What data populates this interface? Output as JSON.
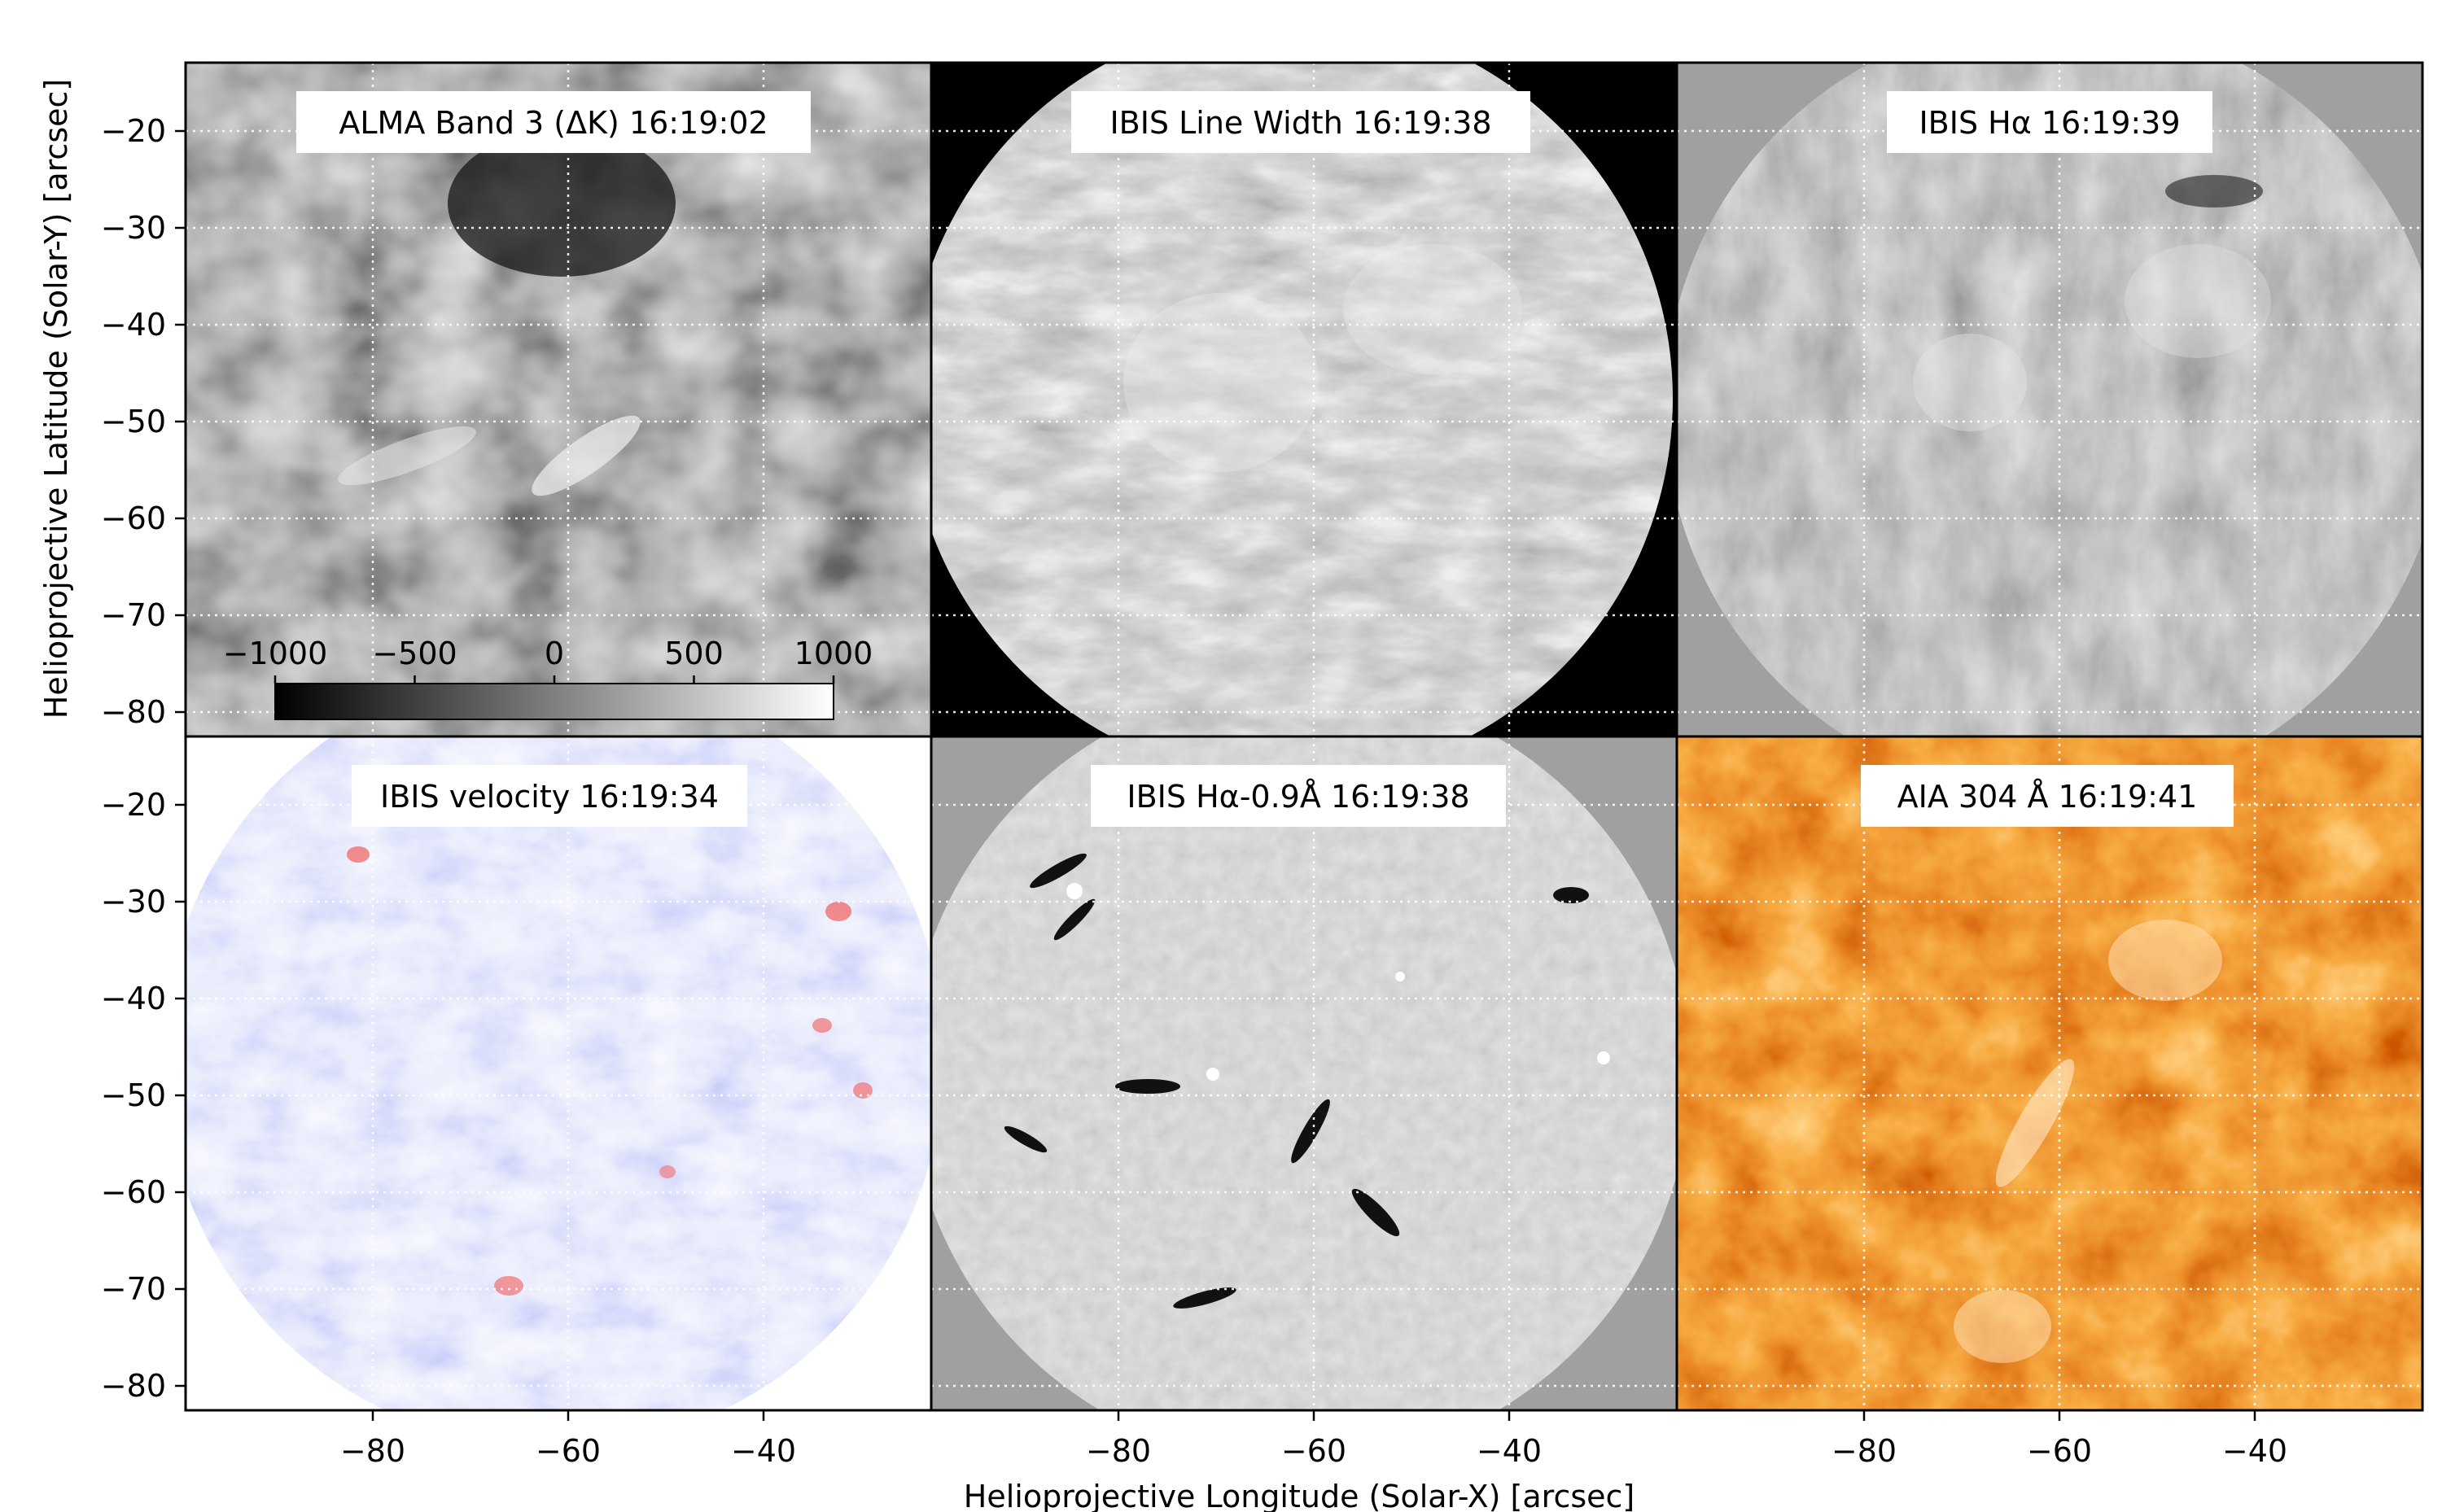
{
  "figure": {
    "xlabel": "Helioprojective Longitude (Solar-X) [arcsec]",
    "ylabel": "Helioprojective Latitude (Solar-Y) [arcsec]"
  },
  "panels": [
    {
      "id": "alma",
      "title": "ALMA Band 3 (ΔK)  16:19:02",
      "colormap": "gray",
      "colors": [
        "#1e1e1e",
        "#7a7a7a",
        "#d8d8d8"
      ]
    },
    {
      "id": "ibis-linewidth",
      "title": "IBIS Line Width  16:19:38",
      "colormap": "gray",
      "colors": [
        "#5a5a5a",
        "#9a9a9a",
        "#e4e4e4"
      ]
    },
    {
      "id": "ibis-halpha",
      "title": "IBIS Hα  16:19:39",
      "colormap": "gray",
      "colors": [
        "#3a3a3a",
        "#8a8a8a",
        "#d0d0d0"
      ]
    },
    {
      "id": "ibis-velocity",
      "title": "IBIS velocity 16:19:34",
      "colormap": "bwr",
      "colors": [
        "#7f86ee",
        "#d9dcf9",
        "#f26b6b"
      ]
    },
    {
      "id": "ibis-halpha-wing",
      "title": "IBIS Hα-0.9Å  16:19:38",
      "colormap": "gray",
      "colors": [
        "#101010",
        "#a6a6a6",
        "#f2f2f2"
      ]
    },
    {
      "id": "aia-304",
      "title": "AIA 304 Å  16:19:41",
      "colormap": "sdoaia304",
      "colors": [
        "#7a0f00",
        "#d14a00",
        "#ffd59a"
      ]
    }
  ],
  "axes": {
    "x_ticks": [
      "−80",
      "−60",
      "−40"
    ],
    "y_ticks": [
      "−20",
      "−30",
      "−40",
      "−50",
      "−60",
      "−70",
      "−80"
    ]
  },
  "colorbar": {
    "ticks": [
      "−1000",
      "−500",
      "0",
      "500",
      "1000"
    ]
  }
}
